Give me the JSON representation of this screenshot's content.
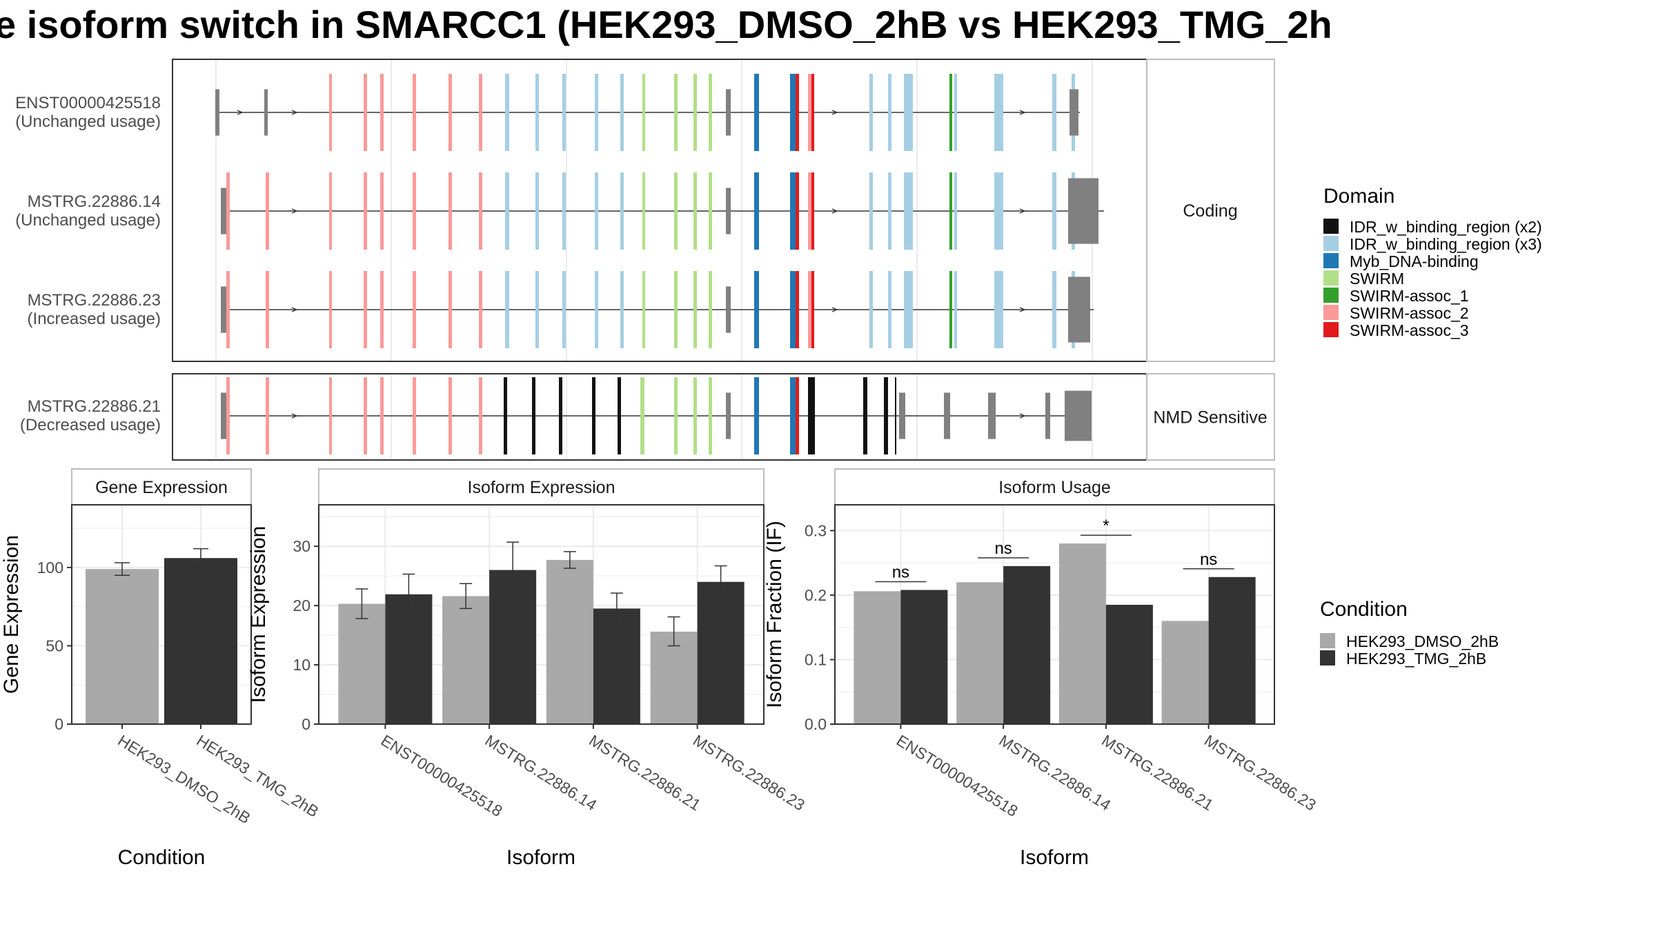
{
  "title": "e isoform switch in SMARCC1 (HEK293_DMSO_2hB vs HEK293_TMG_2h",
  "colors": {
    "IDR_w_binding_region (x2)": "#111111",
    "IDR_w_binding_region (x3)": "#a6cee3",
    "Myb_DNA-binding": "#1f78b4",
    "SWIRM": "#b2df8a",
    "SWIRM-assoc_1": "#33a02c",
    "SWIRM-assoc_2": "#fb9a99",
    "SWIRM-assoc_3": "#e31a1c",
    "plain_exon": "#808080",
    "HEK293_DMSO_2hB": "#a9a9a9",
    "HEK293_TMG_2hB": "#333333"
  },
  "structure": {
    "strips": [
      "Coding",
      "NMD Sensitive"
    ],
    "isoforms": [
      {
        "id": "ENST00000425518",
        "usage": "(Unchanged usage)",
        "group": "Coding"
      },
      {
        "id": "MSTRG.22886.14",
        "usage": "(Unchanged usage)",
        "group": "Coding"
      },
      {
        "id": "MSTRG.22886.23",
        "usage": "(Increased usage)",
        "group": "Coding"
      },
      {
        "id": "MSTRG.22886.21",
        "usage": "(Decreased usage)",
        "group": "NMD Sensitive"
      }
    ],
    "legend_title": "Domain",
    "domains": [
      "IDR_w_binding_region (x2)",
      "IDR_w_binding_region (x3)",
      "Myb_DNA-binding",
      "SWIRM",
      "SWIRM-assoc_1",
      "SWIRM-assoc_2",
      "SWIRM-assoc_3"
    ]
  },
  "chart_data": [
    {
      "type": "bar",
      "title": "Gene Expression",
      "xlabel": "Condition",
      "ylabel": "Gene Expression",
      "ylim": [
        0,
        140
      ],
      "yticks": [
        0,
        50,
        100
      ],
      "categories": [
        "HEK293_DMSO_2hB",
        "HEK293_TMG_2hB"
      ],
      "values": [
        99,
        106
      ],
      "errors": [
        [
          95,
          103
        ],
        [
          100,
          112
        ]
      ]
    },
    {
      "type": "bar",
      "title": "Isoform Expression",
      "xlabel": "Isoform",
      "ylabel": "Isoform Expression",
      "ylim": [
        0,
        37
      ],
      "yticks": [
        0,
        10,
        20,
        30
      ],
      "categories": [
        "ENST00000425518",
        "MSTRG.22886.14",
        "MSTRG.22886.21",
        "MSTRG.22886.23"
      ],
      "series": [
        {
          "name": "HEK293_DMSO_2hB",
          "values": [
            20.3,
            21.6,
            27.7,
            15.6
          ],
          "errors": [
            [
              17.8,
              22.8
            ],
            [
              19.5,
              23.7
            ],
            [
              26.3,
              29.1
            ],
            [
              13.2,
              18.1
            ]
          ]
        },
        {
          "name": "HEK293_TMG_2hB",
          "values": [
            21.9,
            26.0,
            19.5,
            24.0
          ],
          "errors": [
            [
              18.6,
              25.3
            ],
            [
              21.3,
              30.7
            ],
            [
              16.9,
              22.1
            ],
            [
              21.3,
              26.7
            ]
          ]
        }
      ]
    },
    {
      "type": "bar",
      "title": "Isoform Usage",
      "xlabel": "Isoform",
      "ylabel": "Isoform Fraction (IF)",
      "ylim": [
        0,
        0.34
      ],
      "yticks": [
        0.0,
        0.1,
        0.2,
        0.3
      ],
      "categories": [
        "ENST00000425518",
        "MSTRG.22886.14",
        "MSTRG.22886.21",
        "MSTRG.22886.23"
      ],
      "series": [
        {
          "name": "HEK293_DMSO_2hB",
          "values": [
            0.206,
            0.22,
            0.28,
            0.16
          ]
        },
        {
          "name": "HEK293_TMG_2hB",
          "values": [
            0.208,
            0.245,
            0.185,
            0.228
          ]
        }
      ],
      "significance": [
        "ns",
        "ns",
        "*",
        "ns"
      ]
    }
  ],
  "condition_legend": {
    "title": "Condition",
    "entries": [
      "HEK293_DMSO_2hB",
      "HEK293_TMG_2hB"
    ]
  }
}
